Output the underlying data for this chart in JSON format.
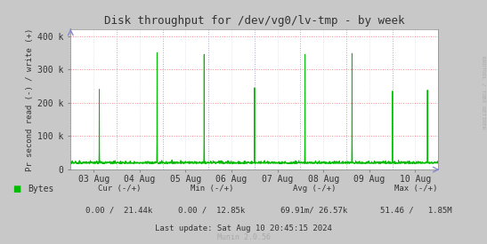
{
  "title": "Disk throughput for /dev/vg0/lv-tmp - by week",
  "ylabel": "Pr second read (-) / write (+)",
  "xlabel_ticks": [
    "03 Aug",
    "04 Aug",
    "05 Aug",
    "06 Aug",
    "07 Aug",
    "08 Aug",
    "09 Aug",
    "10 Aug"
  ],
  "yticks": [
    0,
    100000,
    200000,
    300000,
    400000
  ],
  "ytick_labels": [
    "0",
    "100 k",
    "200 k",
    "300 k",
    "400 k"
  ],
  "ylim": [
    0,
    420000
  ],
  "background_color": "#c8c8c8",
  "plot_bg_color": "#ffffff",
  "grid_color_h": "#ff8888",
  "grid_color_v": "#aaaacc",
  "line_color": "#00bb00",
  "title_color": "#333333",
  "label_color": "#333333",
  "right_label": "RRDTOOL / TOBI OETIKER",
  "legend_label": "Bytes",
  "legend_color": "#00bb00",
  "footer_last": "Last update: Sat Aug 10 20:45:15 2024",
  "footer_munin": "Munin 2.0.56",
  "n_points": 2000,
  "spike_positions": [
    0.078,
    0.235,
    0.363,
    0.5,
    0.637,
    0.765,
    0.875,
    0.97
  ],
  "spike_heights": [
    240000,
    350000,
    345000,
    245000,
    345000,
    348000,
    235000,
    238000
  ],
  "baseline": 18000,
  "noise_amp": 3000
}
